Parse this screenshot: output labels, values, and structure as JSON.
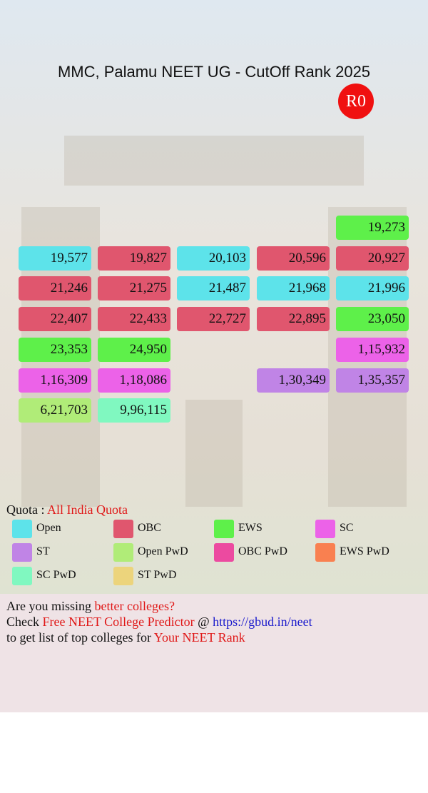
{
  "header": {
    "title": "MMC, Palamu NEET UG - CutOff Rank 2025",
    "badge": "R0"
  },
  "grid": {
    "rows": [
      [
        null,
        null,
        null,
        null,
        {
          "text": "19,273",
          "color": "#5ef04a"
        }
      ],
      [
        {
          "text": "19,577",
          "color": "#5de3ea"
        },
        {
          "text": "19,827",
          "color": "#e0566e"
        },
        {
          "text": "20,103",
          "color": "#5de3ea"
        },
        {
          "text": "20,596",
          "color": "#e0566e"
        },
        {
          "text": "20,927",
          "color": "#e0566e"
        }
      ],
      [
        {
          "text": "21,246",
          "color": "#e0566e"
        },
        {
          "text": "21,275",
          "color": "#e0566e"
        },
        {
          "text": "21,487",
          "color": "#5de3ea"
        },
        {
          "text": "21,968",
          "color": "#5de3ea"
        },
        {
          "text": "21,996",
          "color": "#5de3ea"
        }
      ],
      [
        {
          "text": "22,407",
          "color": "#e0566e"
        },
        {
          "text": "22,433",
          "color": "#e0566e"
        },
        {
          "text": "22,727",
          "color": "#e0566e"
        },
        {
          "text": "22,895",
          "color": "#e0566e"
        },
        {
          "text": "23,050",
          "color": "#5ef04a"
        }
      ],
      [
        {
          "text": "23,353",
          "color": "#5ef04a"
        },
        {
          "text": "24,950",
          "color": "#5ef04a"
        },
        null,
        null,
        {
          "text": "1,15,932",
          "color": "#ec62e8"
        }
      ],
      [
        {
          "text": "1,16,309",
          "color": "#ec62e8"
        },
        {
          "text": "1,18,086",
          "color": "#ec62e8"
        },
        null,
        {
          "text": "1,30,349",
          "color": "#c084e6"
        },
        {
          "text": "1,35,357",
          "color": "#c084e6"
        }
      ],
      [
        {
          "text": "6,21,703",
          "color": "#b0ec78"
        },
        {
          "text": "9,96,115",
          "color": "#80f8c0"
        },
        null,
        null,
        null
      ]
    ]
  },
  "quota": {
    "label": "Quota :",
    "value": "All India Quota"
  },
  "legend": [
    {
      "name": "Open",
      "color": "#5de3ea"
    },
    {
      "name": "OBC",
      "color": "#e0566e"
    },
    {
      "name": "EWS",
      "color": "#5ef04a"
    },
    {
      "name": "SC",
      "color": "#ec62e8"
    },
    {
      "name": "ST",
      "color": "#c084e6"
    },
    {
      "name": "Open PwD",
      "color": "#b0ec78"
    },
    {
      "name": "OBC PwD",
      "color": "#ec4aa0"
    },
    {
      "name": "EWS PwD",
      "color": "#f98050"
    },
    {
      "name": "SC PwD",
      "color": "#80f8c0"
    },
    {
      "name": "ST PwD",
      "color": "#ecd47c"
    }
  ],
  "footer": {
    "lines": [
      [
        {
          "text": "Are you missing ",
          "color": "#111"
        },
        {
          "text": "better colleges?",
          "color": "#e01818"
        }
      ],
      [
        {
          "text": "Check ",
          "color": "#111"
        },
        {
          "text": "Free NEET College Predictor",
          "color": "#e01818"
        },
        {
          "text": " @ ",
          "color": "#111"
        },
        {
          "text": "https://gbud.in/neet",
          "color": "#1a1acc"
        }
      ],
      [
        {
          "text": "to get list of top colleges for ",
          "color": "#111"
        },
        {
          "text": "Your NEET Rank",
          "color": "#e01818"
        }
      ]
    ]
  }
}
